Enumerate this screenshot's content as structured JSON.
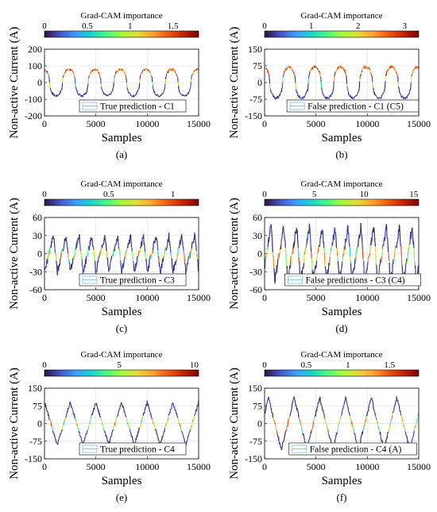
{
  "colors": {
    "colormap": [
      "#30123b",
      "#4454c4",
      "#3e9bfe",
      "#18d5cc",
      "#46f884",
      "#a2fc3c",
      "#e1dd37",
      "#fea331",
      "#ef5911",
      "#c22402",
      "#7a0403"
    ],
    "trace_low": "#1a1a4a",
    "axis": "#000000",
    "grid": "#dcdcdc"
  },
  "chart_data": [
    {
      "type": "line",
      "panel_label": "(a)",
      "colorbar": {
        "title": "Grad-CAM importance",
        "ticks": [
          "0",
          "0.5",
          "1",
          "1.5"
        ],
        "max": 1.8
      },
      "xlabel": "Samples",
      "ylabel": "Non-active Current (A)",
      "xlim": [
        0,
        15000
      ],
      "ylim": [
        -200,
        200
      ],
      "xticks": [
        "0",
        "5000",
        "10000",
        "15000"
      ],
      "yticks": [
        "-200",
        "-100",
        "0",
        "100",
        "200"
      ],
      "legend": "True prediction - C1",
      "series": [
        {
          "wave": "rounded",
          "amplitude": 80,
          "period": 2500,
          "phase": 0.3,
          "noise": 0.1,
          "hot_at_peaks": true
        }
      ]
    },
    {
      "type": "line",
      "panel_label": "(b)",
      "colorbar": {
        "title": "Grad-CAM importance",
        "ticks": [
          "0",
          "1",
          "2",
          "3"
        ],
        "max": 3.3
      },
      "xlabel": "Samples",
      "ylabel": "Non-active Current (A)",
      "xlim": [
        0,
        15000
      ],
      "ylim": [
        -150,
        150
      ],
      "xticks": [
        "0",
        "5000",
        "10000",
        "15000"
      ],
      "yticks": [
        "-150",
        "-75",
        "0",
        "75",
        "150"
      ],
      "legend": "False prediction - C1 (C5)",
      "series": [
        {
          "wave": "rounded",
          "amplitude": 70,
          "period": 2500,
          "phase": 0.3,
          "noise": 0.1,
          "hot_at_peaks": true
        }
      ]
    },
    {
      "type": "line",
      "panel_label": "(c)",
      "colorbar": {
        "title": "Grad-CAM importance",
        "ticks": [
          "0",
          "0.5",
          "1"
        ],
        "max": 1.2
      },
      "xlabel": "Samples",
      "ylabel": "Non-active Current (A)",
      "xlim": [
        0,
        15000
      ],
      "ylim": [
        -60,
        60
      ],
      "xticks": [
        "0",
        "5000",
        "10000",
        "15000"
      ],
      "yticks": [
        "-60",
        "-30",
        "0",
        "30",
        "60"
      ],
      "legend": "True prediction - C3",
      "series": [
        {
          "wave": "sharp",
          "amplitude": 30,
          "period": 1250,
          "phase": 0.0,
          "noise": 0.22,
          "hot_at_peaks": false
        }
      ]
    },
    {
      "type": "line",
      "panel_label": "(d)",
      "colorbar": {
        "title": "Grad-CAM importance",
        "ticks": [
          "0",
          "5",
          "10",
          "15"
        ],
        "max": 15.5
      },
      "xlabel": "Samples",
      "ylabel": "Non-active Current (A)",
      "xlim": [
        0,
        15000
      ],
      "ylim": [
        -60,
        60
      ],
      "xticks": [
        "0",
        "5000",
        "10000",
        "15000"
      ],
      "yticks": [
        "-60",
        "-30",
        "0",
        "30",
        "60"
      ],
      "legend": "False predictions - C3 (C4)",
      "series": [
        {
          "wave": "sharp",
          "amplitude": 45,
          "period": 1250,
          "phase": 0.2,
          "noise": 0.18,
          "hot_at_peaks": false
        }
      ]
    },
    {
      "type": "line",
      "panel_label": "(e)",
      "colorbar": {
        "title": "Grad-CAM importance",
        "ticks": [
          "0",
          "5",
          "10"
        ],
        "max": 10.3
      },
      "xlabel": "Samples",
      "ylabel": "Non-active Current (A)",
      "xlim": [
        0,
        15000
      ],
      "ylim": [
        -150,
        150
      ],
      "xticks": [
        "0",
        "5000",
        "10000",
        "15000"
      ],
      "yticks": [
        "-150",
        "-75",
        "0",
        "75",
        "150"
      ],
      "legend": "True prediction - C4",
      "series": [
        {
          "wave": "triangle",
          "amplitude": 90,
          "period": 2500,
          "phase": 0.25,
          "noise": 0.08,
          "hot_at_peaks": false
        }
      ]
    },
    {
      "type": "line",
      "panel_label": "(f)",
      "colorbar": {
        "title": "Grad-CAM importance",
        "ticks": [
          "0",
          "0.5",
          "1",
          "1.5"
        ],
        "max": 1.85
      },
      "xlabel": "Samples",
      "ylabel": "Non-active Current (A)",
      "xlim": [
        0,
        15000
      ],
      "ylim": [
        -150,
        150
      ],
      "xticks": [
        "0",
        "5000",
        "10000",
        "15000"
      ],
      "yticks": [
        "-150",
        "-75",
        "0",
        "75",
        "150"
      ],
      "legend": "False prediction - C4 (A)",
      "series": [
        {
          "wave": "triangle",
          "amplitude": 110,
          "period": 2500,
          "phase": 0.1,
          "noise": 0.08,
          "hot_at_peaks": false
        }
      ]
    }
  ]
}
